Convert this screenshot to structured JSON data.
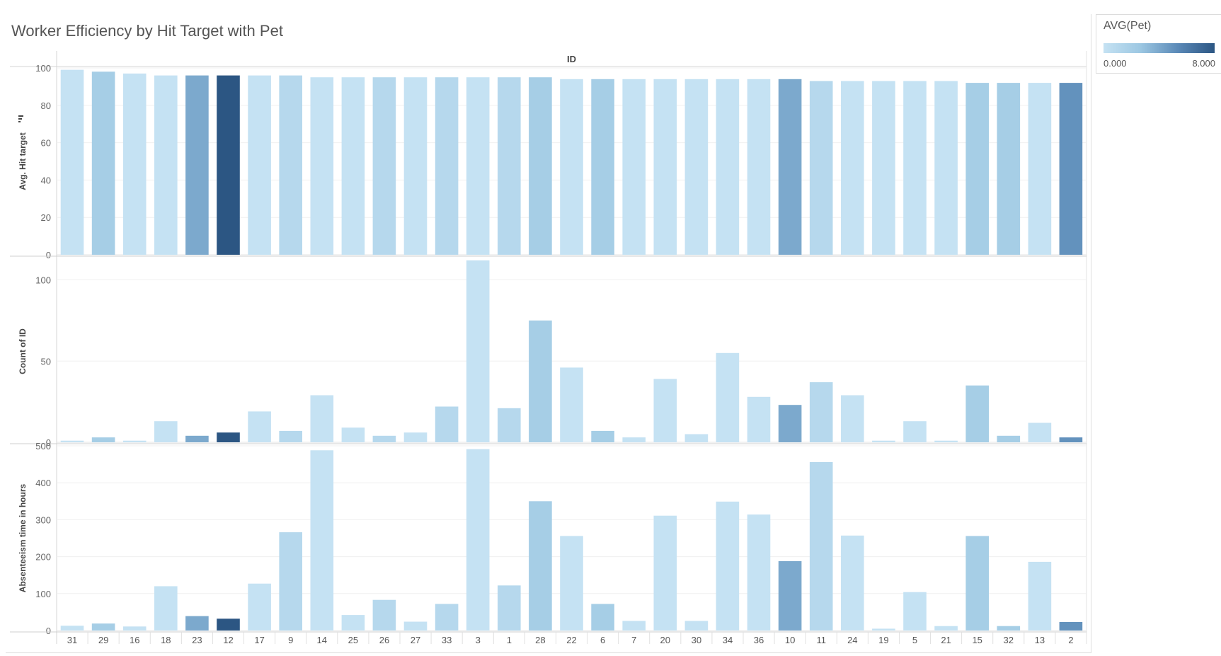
{
  "title": "Worker Efficiency by Hit Target with Pet",
  "legend": {
    "title": "AVG(Pet)",
    "min_label": "0.000",
    "max_label": "8.000",
    "colors": [
      "#c5e2f3",
      "#9cc7e2",
      "#5b8ab8",
      "#2c5683"
    ]
  },
  "chart_data": {
    "type": "bar",
    "column_header": "ID",
    "categories": [
      "31",
      "29",
      "16",
      "18",
      "23",
      "12",
      "17",
      "9",
      "14",
      "25",
      "26",
      "27",
      "33",
      "3",
      "1",
      "28",
      "22",
      "6",
      "7",
      "20",
      "30",
      "34",
      "36",
      "10",
      "11",
      "24",
      "19",
      "5",
      "21",
      "15",
      "32",
      "13",
      "2"
    ],
    "color_values": [
      0,
      2,
      0,
      0,
      4,
      8,
      0,
      1,
      0,
      0,
      1,
      0,
      1,
      0,
      1,
      2,
      0,
      2,
      0,
      0,
      0,
      0,
      0,
      4,
      1,
      0,
      0,
      0,
      0,
      2,
      2,
      0,
      5
    ],
    "panels": [
      {
        "ylabel": "Avg. Hit target",
        "ylim": [
          0,
          100
        ],
        "ticks": [
          0,
          20,
          40,
          60,
          80,
          100
        ],
        "values": [
          99,
          98,
          97,
          96,
          96,
          96,
          96,
          96,
          95,
          95,
          95,
          95,
          95,
          95,
          95,
          95,
          94,
          94,
          94,
          94,
          94,
          94,
          94,
          94,
          93,
          93,
          93,
          93,
          93,
          92,
          92,
          92,
          92
        ]
      },
      {
        "ylabel": "Count of ID",
        "ylim": [
          0,
          112
        ],
        "ticks": [
          0,
          50,
          100
        ],
        "values": [
          1,
          3,
          1,
          13,
          4,
          6,
          19,
          7,
          29,
          9,
          4,
          6,
          22,
          112,
          21,
          75,
          46,
          7,
          3,
          39,
          5,
          55,
          28,
          23,
          37,
          29,
          1,
          13,
          1,
          35,
          4,
          12,
          3
        ]
      },
      {
        "ylabel": "Absenteeism time in hours",
        "ylim": [
          0,
          500
        ],
        "ticks": [
          0,
          100,
          200,
          300,
          400,
          500
        ],
        "values": [
          13,
          19,
          11,
          120,
          39,
          32,
          127,
          266,
          488,
          42,
          83,
          24,
          72,
          491,
          122,
          350,
          256,
          72,
          26,
          311,
          26,
          349,
          314,
          188,
          456,
          257,
          5,
          104,
          12,
          256,
          12,
          186,
          23
        ]
      }
    ]
  }
}
